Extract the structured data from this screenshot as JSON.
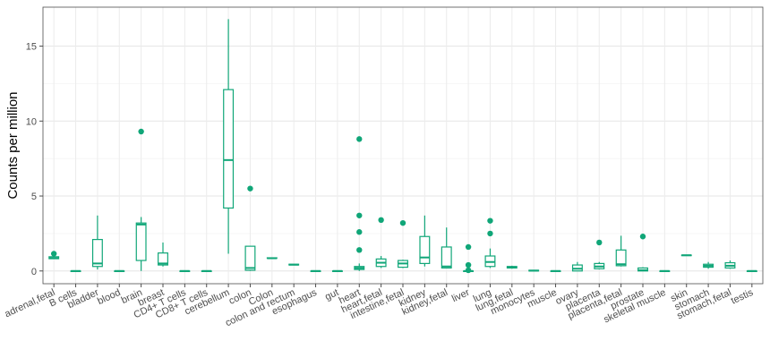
{
  "chart_data": {
    "type": "box",
    "title": "",
    "xlabel": "",
    "ylabel": "Counts per million",
    "ylim": [
      -0.85,
      17.6
    ],
    "yticks": [
      0,
      5,
      10,
      15
    ],
    "grid": true,
    "legend": "none",
    "color": "#10a678",
    "categories": [
      "adrenal,fetal",
      "B cells",
      "bladder",
      "blood",
      "brain",
      "breast",
      "CD4+ T cells",
      "CD8+ T cells",
      "cerebellum",
      "colon",
      "Colon",
      "colon and rectum",
      "esophagus",
      "gut",
      "heart",
      "heart,fetal",
      "intestine,fetal",
      "kidney",
      "kidney,fetal",
      "liver",
      "lung",
      "lung,fetal",
      "monocytes",
      "muscle",
      "ovary",
      "placenta",
      "placenta,fetal",
      "prostate",
      "skeletal muscle",
      "skin",
      "stomach",
      "stomach,fetal",
      "testis"
    ],
    "boxes": [
      {
        "min": 0.82,
        "q1": 0.82,
        "median": 0.85,
        "q3": 0.95,
        "max": 1.05,
        "outliers": [
          1.15
        ]
      },
      {
        "min": 0,
        "q1": 0,
        "median": 0,
        "q3": 0,
        "max": 0,
        "outliers": []
      },
      {
        "min": 0.1,
        "q1": 0.3,
        "median": 0.5,
        "q3": 2.1,
        "max": 3.7,
        "outliers": []
      },
      {
        "min": 0,
        "q1": 0,
        "median": 0,
        "q3": 0,
        "max": 0,
        "outliers": []
      },
      {
        "min": 0,
        "q1": 0.7,
        "median": 3.1,
        "q3": 3.2,
        "max": 3.6,
        "outliers": [
          9.3
        ]
      },
      {
        "min": 0.3,
        "q1": 0.4,
        "median": 0.5,
        "q3": 1.2,
        "max": 1.9,
        "outliers": []
      },
      {
        "min": 0,
        "q1": 0,
        "median": 0,
        "q3": 0,
        "max": 0,
        "outliers": []
      },
      {
        "min": 0,
        "q1": 0,
        "median": 0,
        "q3": 0,
        "max": 0,
        "outliers": []
      },
      {
        "min": 1.15,
        "q1": 4.2,
        "median": 7.4,
        "q3": 12.1,
        "max": 16.8,
        "outliers": []
      },
      {
        "min": 0,
        "q1": 0.05,
        "median": 0.2,
        "q3": 1.65,
        "max": 1.65,
        "outliers": [
          5.5
        ]
      },
      {
        "min": 0.85,
        "q1": 0.85,
        "median": 0.85,
        "q3": 0.88,
        "max": 0.88,
        "outliers": []
      },
      {
        "min": 0.4,
        "q1": 0.4,
        "median": 0.42,
        "q3": 0.45,
        "max": 0.45,
        "outliers": []
      },
      {
        "min": 0,
        "q1": 0,
        "median": 0,
        "q3": 0,
        "max": 0,
        "outliers": []
      },
      {
        "min": 0,
        "q1": 0,
        "median": 0,
        "q3": 0,
        "max": 0,
        "outliers": []
      },
      {
        "min": 0,
        "q1": 0.1,
        "median": 0.2,
        "q3": 0.3,
        "max": 0.5,
        "outliers": [
          1.4,
          2.6,
          3.7,
          8.8
        ]
      },
      {
        "min": 0.2,
        "q1": 0.3,
        "median": 0.55,
        "q3": 0.8,
        "max": 1.0,
        "outliers": [
          3.4
        ]
      },
      {
        "min": 0.2,
        "q1": 0.25,
        "median": 0.5,
        "q3": 0.7,
        "max": 0.75,
        "outliers": [
          3.2
        ]
      },
      {
        "min": 0.3,
        "q1": 0.5,
        "median": 0.9,
        "q3": 2.3,
        "max": 3.7,
        "outliers": []
      },
      {
        "min": 0.2,
        "q1": 0.2,
        "median": 0.3,
        "q3": 1.6,
        "max": 2.9,
        "outliers": []
      },
      {
        "min": 0,
        "q1": 0,
        "median": 0,
        "q3": 0,
        "max": 0,
        "outliers": [
          0.05,
          0.4,
          1.6
        ]
      },
      {
        "min": 0.2,
        "q1": 0.3,
        "median": 0.6,
        "q3": 1.0,
        "max": 1.5,
        "outliers": [
          2.5,
          3.35
        ]
      },
      {
        "min": 0.15,
        "q1": 0.2,
        "median": 0.25,
        "q3": 0.3,
        "max": 0.35,
        "outliers": []
      },
      {
        "min": 0,
        "q1": 0,
        "median": 0.02,
        "q3": 0.05,
        "max": 0.05,
        "outliers": []
      },
      {
        "min": 0,
        "q1": 0,
        "median": 0,
        "q3": 0,
        "max": 0,
        "outliers": []
      },
      {
        "min": 0,
        "q1": 0,
        "median": 0.15,
        "q3": 0.4,
        "max": 0.6,
        "outliers": []
      },
      {
        "min": 0.1,
        "q1": 0.15,
        "median": 0.3,
        "q3": 0.5,
        "max": 0.6,
        "outliers": [
          1.9
        ]
      },
      {
        "min": 0.3,
        "q1": 0.35,
        "median": 0.45,
        "q3": 1.4,
        "max": 2.35,
        "outliers": []
      },
      {
        "min": 0,
        "q1": 0,
        "median": 0.05,
        "q3": 0.2,
        "max": 0.25,
        "outliers": [
          2.3
        ]
      },
      {
        "min": 0,
        "q1": 0,
        "median": 0,
        "q3": 0,
        "max": 0,
        "outliers": []
      },
      {
        "min": 1.02,
        "q1": 1.03,
        "median": 1.05,
        "q3": 1.06,
        "max": 1.07,
        "outliers": []
      },
      {
        "min": 0.15,
        "q1": 0.25,
        "median": 0.35,
        "q3": 0.45,
        "max": 0.6,
        "outliers": []
      },
      {
        "min": 0.15,
        "q1": 0.2,
        "median": 0.35,
        "q3": 0.55,
        "max": 0.7,
        "outliers": []
      },
      {
        "min": 0,
        "q1": 0,
        "median": 0,
        "q3": 0,
        "max": 0,
        "outliers": []
      }
    ]
  }
}
